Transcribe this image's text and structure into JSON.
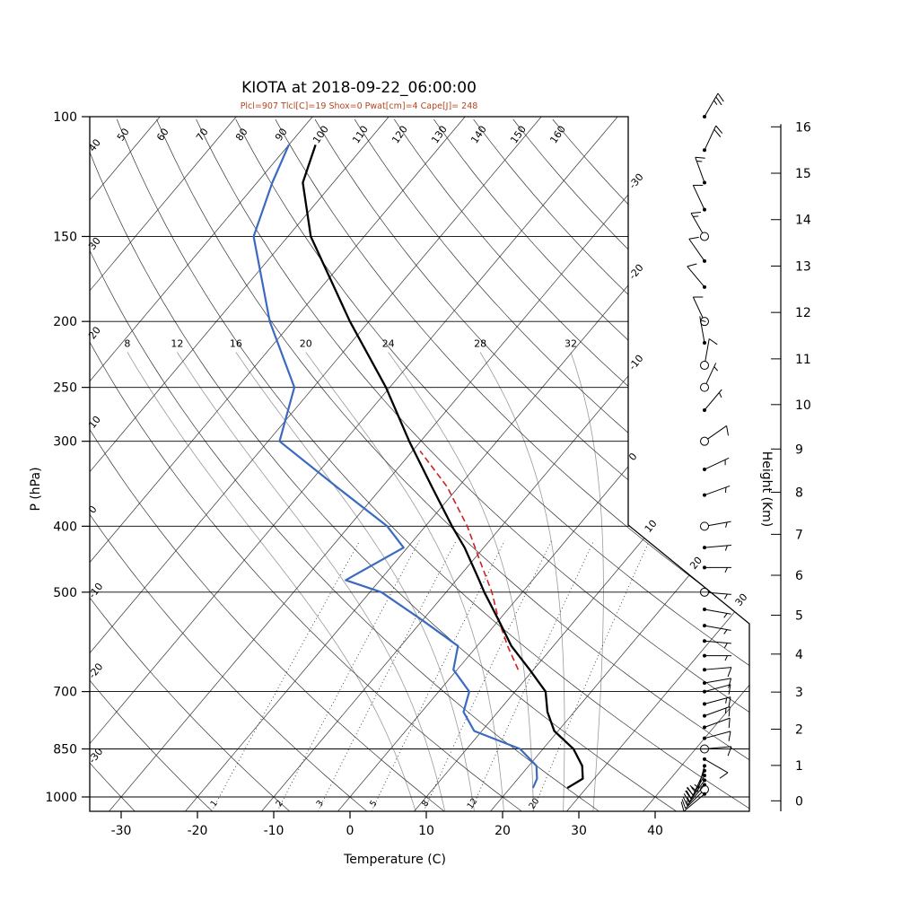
{
  "title": "KIOTA at 2018-09-22_06:00:00",
  "params_line": "Plcl=907 Tlcl[C]=19 Shox=0 Pwat[cm]=4 Cape[J]= 248",
  "axis_labels": {
    "left": "P (hPa)",
    "bottom": "Temperature (C)",
    "right": "Height (Km)"
  },
  "colors": {
    "temperature_curve": "#000000",
    "dewpoint_curve": "#3b6abf",
    "parcel_curve": "#cc2222",
    "params_text": "#b5451f",
    "moist_adiabat": "#9a9a9a",
    "grid": "#333333"
  },
  "chart_data": {
    "type": "skewt_log_p_sounding",
    "station": "KIOTA",
    "datetime": "2018-09-22_06:00:00",
    "indices": {
      "Plcl_hPa": 907,
      "Tlcl_C": 19,
      "Showalter": 0,
      "Pwat_cm": 4,
      "Cape_J": 248
    },
    "pressure_ticks_hPa": [
      100,
      150,
      200,
      250,
      300,
      400,
      500,
      700,
      850,
      1000
    ],
    "temperature_ticks_C": [
      -30,
      -20,
      -10,
      0,
      10,
      20,
      30,
      40
    ],
    "height_ticks_km": [
      0,
      1,
      2,
      3,
      4,
      5,
      6,
      7,
      8,
      9,
      10,
      11,
      12,
      13,
      14,
      15,
      16
    ],
    "isotherms_C": {
      "min": -110,
      "max": 40,
      "step": 10
    },
    "isotherm_edge_labels": [
      -30,
      -20,
      -10,
      0,
      10,
      20,
      30
    ],
    "dry_adiabats_C": [
      -30,
      -20,
      -10,
      0,
      10,
      20,
      30,
      40,
      50,
      60,
      70,
      80,
      90,
      100,
      110,
      120,
      130,
      140,
      150,
      160
    ],
    "moist_adiabats_C": [
      8,
      12,
      16,
      20,
      24,
      28,
      32
    ],
    "mixing_ratio_g_kg": [
      1,
      2,
      3,
      5,
      8,
      12,
      20
    ],
    "sounding": {
      "pressure_hPa": [
        970,
        940,
        900,
        850,
        800,
        750,
        700,
        650,
        600,
        550,
        500,
        480,
        430,
        400,
        350,
        300,
        250,
        200,
        150,
        125,
        110
      ],
      "temperature_C": [
        27.5,
        28.5,
        27.0,
        24.0,
        19.5,
        16.5,
        14.0,
        9.5,
        4.5,
        0.0,
        -5.0,
        -7.0,
        -12.5,
        -16.5,
        -23.5,
        -31.5,
        -40.5,
        -52.5,
        -67.0,
        -74.0,
        -76.5
      ],
      "dewpoint_C": [
        23.0,
        22.5,
        21.0,
        17.0,
        9.0,
        5.5,
        4.0,
        -0.5,
        -2.5,
        -10.0,
        -18.5,
        -24.5,
        -20.5,
        -25.0,
        -36.0,
        -48.5,
        -52.5,
        -63.0,
        -74.5,
        -78.0,
        -80.0
      ]
    },
    "parcel": {
      "pressure_hPa": [
        650,
        600,
        550,
        500,
        450,
        400,
        350,
        310
      ],
      "temperature_C": [
        8.0,
        4.0,
        0.0,
        -4.0,
        -9.0,
        -14.5,
        -21.5,
        -29.0
      ]
    },
    "winds": [
      {
        "p": 100,
        "spd": 25,
        "dir": 30,
        "circ": false
      },
      {
        "p": 112,
        "spd": 20,
        "dir": 25,
        "circ": false
      },
      {
        "p": 125,
        "spd": 15,
        "dir": 340,
        "circ": false
      },
      {
        "p": 137,
        "spd": 10,
        "dir": 335,
        "circ": false
      },
      {
        "p": 150,
        "spd": 15,
        "dir": 330,
        "circ": true
      },
      {
        "p": 163,
        "spd": 10,
        "dir": 325,
        "circ": false
      },
      {
        "p": 178,
        "spd": 10,
        "dir": 320,
        "circ": false
      },
      {
        "p": 200,
        "spd": 10,
        "dir": 335,
        "circ": true
      },
      {
        "p": 215,
        "spd": 5,
        "dir": 350,
        "circ": false
      },
      {
        "p": 232,
        "spd": 10,
        "dir": 10,
        "circ": true
      },
      {
        "p": 250,
        "spd": 5,
        "dir": 25,
        "circ": true
      },
      {
        "p": 270,
        "spd": 5,
        "dir": 40,
        "circ": false
      },
      {
        "p": 300,
        "spd": 10,
        "dir": 55,
        "circ": true
      },
      {
        "p": 330,
        "spd": 5,
        "dir": 65,
        "circ": false
      },
      {
        "p": 360,
        "spd": 5,
        "dir": 70,
        "circ": false
      },
      {
        "p": 400,
        "spd": 5,
        "dir": 80,
        "circ": true
      },
      {
        "p": 430,
        "spd": 5,
        "dir": 85,
        "circ": false
      },
      {
        "p": 460,
        "spd": 5,
        "dir": 90,
        "circ": false
      },
      {
        "p": 500,
        "spd": 5,
        "dir": 95,
        "circ": true
      },
      {
        "p": 530,
        "spd": 5,
        "dir": 100,
        "circ": false
      },
      {
        "p": 560,
        "spd": 5,
        "dir": 100,
        "circ": false
      },
      {
        "p": 590,
        "spd": 5,
        "dir": 95,
        "circ": false
      },
      {
        "p": 620,
        "spd": 5,
        "dir": 90,
        "circ": false
      },
      {
        "p": 650,
        "spd": 10,
        "dir": 85,
        "circ": false
      },
      {
        "p": 680,
        "spd": 10,
        "dir": 80,
        "circ": false
      },
      {
        "p": 700,
        "spd": 10,
        "dir": 75,
        "circ": false
      },
      {
        "p": 730,
        "spd": 15,
        "dir": 75,
        "circ": false
      },
      {
        "p": 760,
        "spd": 15,
        "dir": 70,
        "circ": false
      },
      {
        "p": 790,
        "spd": 10,
        "dir": 70,
        "circ": false
      },
      {
        "p": 820,
        "spd": 10,
        "dir": 75,
        "circ": false
      },
      {
        "p": 850,
        "spd": 10,
        "dir": 85,
        "circ": true
      },
      {
        "p": 880,
        "spd": 10,
        "dir": 120,
        "circ": false
      },
      {
        "p": 900,
        "spd": 15,
        "dir": 195,
        "circ": false
      },
      {
        "p": 915,
        "spd": 15,
        "dir": 205,
        "circ": false
      },
      {
        "p": 930,
        "spd": 20,
        "dir": 210,
        "circ": false
      },
      {
        "p": 945,
        "spd": 20,
        "dir": 215,
        "circ": false
      },
      {
        "p": 960,
        "spd": 15,
        "dir": 220,
        "circ": false
      },
      {
        "p": 975,
        "spd": 15,
        "dir": 225,
        "circ": true
      },
      {
        "p": 990,
        "spd": 10,
        "dir": 230,
        "circ": false
      }
    ]
  }
}
